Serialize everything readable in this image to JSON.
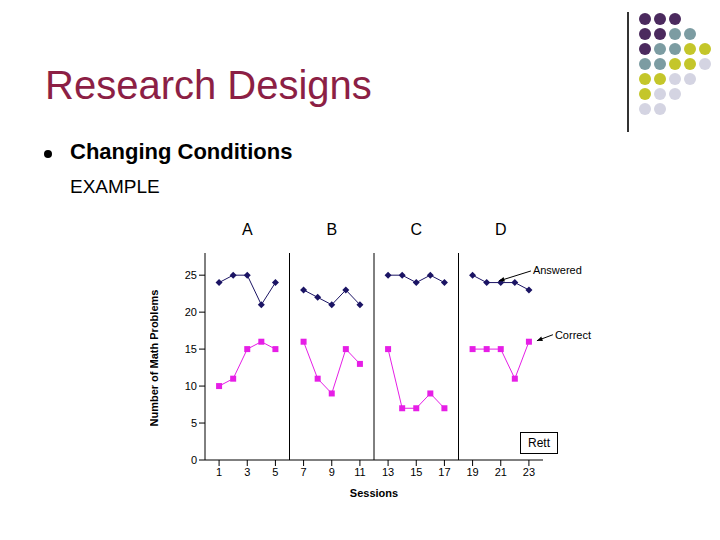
{
  "title": "Research Designs",
  "bullet": "Changing Conditions",
  "subtitle": "EXAMPLE",
  "chart_data": {
    "type": "line",
    "x": [
      1,
      2,
      3,
      4,
      5,
      6,
      7,
      8,
      9,
      10,
      11,
      12,
      13,
      14,
      15,
      16,
      17,
      18,
      19,
      20,
      21,
      22,
      23
    ],
    "series": [
      {
        "name": "Answered",
        "color": "#1b1464",
        "marker": "diamond",
        "values": [
          24,
          25,
          25,
          21,
          24,
          null,
          23,
          22,
          21,
          23,
          21,
          null,
          25,
          25,
          24,
          25,
          24,
          null,
          25,
          24,
          24,
          24,
          23
        ]
      },
      {
        "name": "Correct",
        "color": "#e61ee6",
        "marker": "square",
        "values": [
          10,
          11,
          15,
          16,
          15,
          null,
          16,
          11,
          9,
          15,
          13,
          null,
          15,
          7,
          7,
          9,
          7,
          null,
          15,
          15,
          15,
          11,
          16
        ]
      }
    ],
    "xlim": [
      0,
      24
    ],
    "xticks": [
      1,
      3,
      5,
      7,
      9,
      11,
      13,
      15,
      17,
      19,
      21,
      23
    ],
    "ylim": [
      0,
      28
    ],
    "yticks": [
      0,
      5,
      10,
      15,
      20,
      25
    ],
    "xlabel": "Sessions",
    "ylabel": "Number of Math Problems",
    "phase_labels": [
      "A",
      "B",
      "C",
      "D"
    ],
    "phase_lines": [
      6,
      12,
      18
    ],
    "annotation": "Rett"
  }
}
